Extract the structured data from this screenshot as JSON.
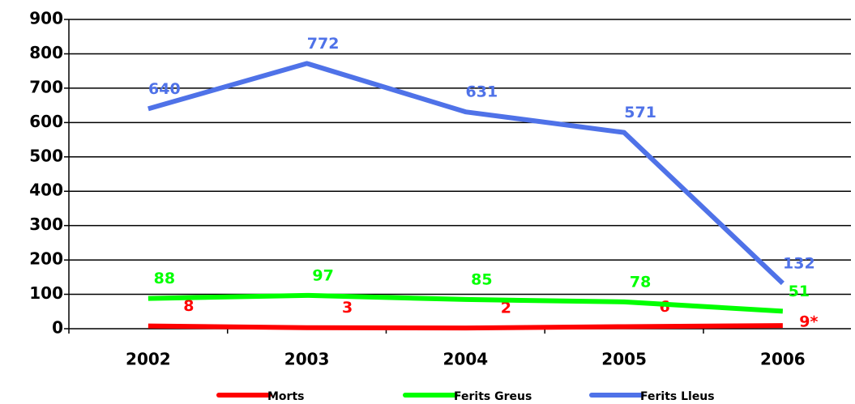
{
  "chart_data": {
    "type": "line",
    "categories": [
      "2002",
      "2003",
      "2004",
      "2005",
      "2006"
    ],
    "series": [
      {
        "name": "Morts",
        "color": "#ff0000",
        "values": [
          8,
          3,
          2,
          6,
          9
        ],
        "value_labels": [
          "8",
          "3",
          "2",
          "6",
          "9*"
        ]
      },
      {
        "name": "Ferits Greus",
        "color": "#00ff00",
        "values": [
          88,
          97,
          85,
          78,
          51
        ]
      },
      {
        "name": "Ferits Lleus",
        "color": "#4f72e8",
        "values": [
          640,
          772,
          631,
          571,
          132
        ]
      }
    ],
    "ylim": [
      0,
      900
    ],
    "yticks": [
      0,
      100,
      200,
      300,
      400,
      500,
      600,
      700,
      800,
      900
    ],
    "grid": true,
    "legend": "bottom"
  }
}
